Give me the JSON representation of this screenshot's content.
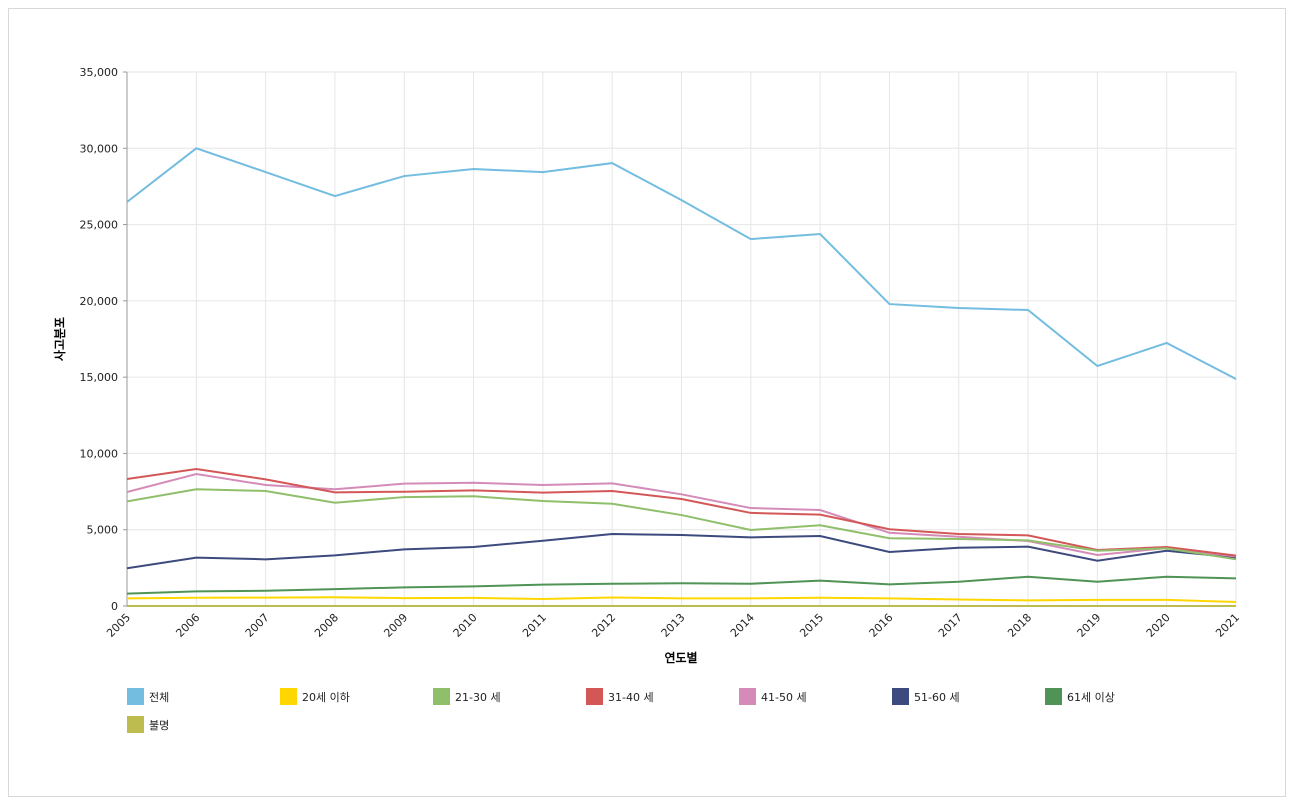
{
  "chart_data": {
    "type": "line",
    "title": "",
    "xlabel": "연도별",
    "ylabel": "사고분포",
    "ylim": [
      0,
      35000
    ],
    "yticks": [
      "0",
      "5,000",
      "10,000",
      "15,000",
      "20,000",
      "25,000",
      "30,000",
      "35,000"
    ],
    "ytick_values": [
      0,
      5000,
      10000,
      15000,
      20000,
      25000,
      30000,
      35000
    ],
    "grid": true,
    "legend_position": "bottom",
    "x": [
      "2005",
      "2006",
      "2007",
      "2008",
      "2009",
      "2010",
      "2011",
      "2012",
      "2013",
      "2014",
      "2015",
      "2016",
      "2017",
      "2018",
      "2019",
      "2020",
      "2021"
    ],
    "series": [
      {
        "name": "전체",
        "color": "#73bde0",
        "values": [
          26480,
          30000,
          28440,
          26870,
          28180,
          28640,
          28440,
          29030,
          26600,
          24050,
          24380,
          19790,
          19530,
          19400,
          15730,
          17240,
          14880
        ]
      },
      {
        "name": "20세 이하",
        "color": "#ffd700",
        "values": [
          500,
          540,
          550,
          570,
          520,
          530,
          460,
          560,
          500,
          500,
          540,
          500,
          430,
          365,
          400,
          400,
          260
        ]
      },
      {
        "name": "21-30 세",
        "color": "#8fbf6a",
        "values": [
          6860,
          7650,
          7540,
          6770,
          7140,
          7190,
          6880,
          6700,
          5960,
          4980,
          5290,
          4440,
          4390,
          4300,
          3620,
          3780,
          3060
        ]
      },
      {
        "name": "31-40 세",
        "color": "#d45757",
        "values": [
          8320,
          8980,
          8300,
          7450,
          7490,
          7580,
          7430,
          7540,
          7010,
          6100,
          5990,
          5030,
          4720,
          4630,
          3670,
          3870,
          3300
        ]
      },
      {
        "name": "41-50 세",
        "color": "#d48bb8",
        "values": [
          7470,
          8650,
          7930,
          7650,
          8020,
          8080,
          7930,
          8040,
          7320,
          6420,
          6290,
          4800,
          4540,
          4260,
          3340,
          3800,
          3240
        ]
      },
      {
        "name": "51-60 세",
        "color": "#3d4a7e",
        "values": [
          2470,
          3170,
          3060,
          3320,
          3710,
          3870,
          4280,
          4720,
          4650,
          4500,
          4590,
          3540,
          3820,
          3890,
          2970,
          3620,
          3170
        ]
      },
      {
        "name": "61세 이상",
        "color": "#4f9456",
        "values": [
          810,
          960,
          1000,
          1110,
          1220,
          1290,
          1400,
          1460,
          1490,
          1460,
          1660,
          1420,
          1590,
          1920,
          1590,
          1920,
          1810
        ]
      },
      {
        "name": "불명",
        "color": "#bdbd4f",
        "values": [
          0,
          0,
          0,
          0,
          0,
          0,
          0,
          0,
          0,
          0,
          0,
          0,
          0,
          0,
          0,
          0,
          0
        ]
      }
    ]
  }
}
